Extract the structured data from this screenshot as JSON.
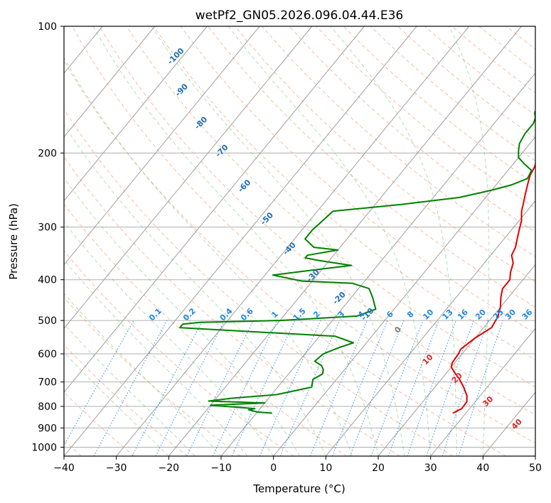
{
  "chart_data": {
    "type": "line",
    "title": "wetPf2_GN05.2026.096.04.44.E36",
    "xlabel": "Temperature (°C)",
    "ylabel": "Pressure (hPa)",
    "xlim": [
      -40,
      50
    ],
    "ylim": [
      1050,
      100
    ],
    "y_scale": "log",
    "x_ticks": [
      -40,
      -30,
      -20,
      -10,
      0,
      10,
      20,
      30,
      40,
      50
    ],
    "y_ticks": [
      100,
      200,
      300,
      400,
      500,
      600,
      700,
      800,
      900,
      1000
    ],
    "grid": true,
    "series": [
      {
        "name": "",
        "role": "temperature",
        "color": "#e00000",
        "points": [
          [
            27.5,
            830
          ],
          [
            28.5,
            810
          ],
          [
            28.4,
            780
          ],
          [
            27.5,
            755
          ],
          [
            25.5,
            720
          ],
          [
            23.5,
            690
          ],
          [
            21.5,
            665
          ],
          [
            20.0,
            645
          ],
          [
            19.5,
            630
          ],
          [
            19.3,
            600
          ],
          [
            19.0,
            585
          ],
          [
            20.0,
            550
          ],
          [
            21.5,
            520
          ],
          [
            21.0,
            490
          ],
          [
            20.0,
            465
          ],
          [
            18.5,
            440
          ],
          [
            17.5,
            420
          ],
          [
            17.5,
            400
          ],
          [
            16.5,
            385
          ],
          [
            15.5,
            365
          ],
          [
            14.0,
            350
          ],
          [
            13.5,
            335
          ],
          [
            12.5,
            320
          ],
          [
            11.5,
            305
          ],
          [
            10.5,
            290
          ],
          [
            9.0,
            275
          ],
          [
            8.0,
            262
          ],
          [
            7.0,
            250
          ],
          [
            6.0,
            238
          ],
          [
            5.0,
            226
          ],
          [
            4.5,
            215
          ],
          [
            3.5,
            205
          ],
          [
            2.5,
            195
          ],
          [
            2.0,
            185
          ],
          [
            1.5,
            175
          ],
          [
            1.0,
            165
          ],
          [
            0.5,
            155
          ],
          [
            1.0,
            145
          ],
          [
            2.0,
            135
          ],
          [
            1.8,
            125
          ],
          [
            1.0,
            118
          ],
          [
            0.8,
            110
          ],
          [
            1.5,
            100
          ]
        ]
      },
      {
        "name": "",
        "role": "dewpoint",
        "color": "#008000",
        "points": [
          [
            -7.0,
            830
          ],
          [
            -10.0,
            825
          ],
          [
            -12.0,
            815
          ],
          [
            -11.0,
            810
          ],
          [
            -15.0,
            803
          ],
          [
            -20.0,
            795
          ],
          [
            -15.0,
            790
          ],
          [
            -10.0,
            785
          ],
          [
            -21.0,
            777
          ],
          [
            -17.0,
            765
          ],
          [
            -9.0,
            750
          ],
          [
            -3.5,
            720
          ],
          [
            -4.5,
            690
          ],
          [
            -3.5,
            670
          ],
          [
            -4.0,
            655
          ],
          [
            -5.0,
            640
          ],
          [
            -7.0,
            625
          ],
          [
            -6.5,
            600
          ],
          [
            -4.5,
            580
          ],
          [
            -2.5,
            565
          ],
          [
            -7.0,
            545
          ],
          [
            -38.0,
            520
          ],
          [
            -38.0,
            510
          ],
          [
            -35.0,
            505
          ],
          [
            -20.0,
            500
          ],
          [
            -6.0,
            488
          ],
          [
            -3.5,
            470
          ],
          [
            -6.0,
            440
          ],
          [
            -8.0,
            420
          ],
          [
            -12.0,
            408
          ],
          [
            -22.0,
            403
          ],
          [
            -28.5,
            390
          ],
          [
            -22.0,
            380
          ],
          [
            -15.0,
            370
          ],
          [
            -22.0,
            360
          ],
          [
            -25.0,
            355
          ],
          [
            -25.0,
            350
          ],
          [
            -20.0,
            340
          ],
          [
            -25.0,
            335
          ],
          [
            -28.0,
            320
          ],
          [
            -28.0,
            305
          ],
          [
            -27.5,
            290
          ],
          [
            -27.0,
            275
          ],
          [
            -15.0,
            265
          ],
          [
            -5.0,
            255
          ],
          [
            0.0,
            245
          ],
          [
            3.0,
            238
          ],
          [
            5.0,
            230
          ],
          [
            4.5,
            220
          ],
          [
            2.0,
            212
          ],
          [
            0.0,
            205
          ],
          [
            -1.0,
            198
          ],
          [
            -2.0,
            190
          ],
          [
            -2.5,
            180
          ],
          [
            -2.5,
            170
          ],
          [
            -3.0,
            165
          ],
          [
            -4.0,
            160
          ],
          [
            -4.0,
            155
          ],
          [
            -3.5,
            150
          ],
          [
            -3.5,
            145
          ],
          [
            -3.0,
            140
          ],
          [
            -3.0,
            135
          ],
          [
            -2.5,
            130
          ],
          [
            -2.0,
            124
          ],
          [
            -1.0,
            118
          ],
          [
            0.0,
            113
          ],
          [
            -0.5,
            108
          ],
          [
            -1.0,
            104
          ],
          [
            -1.5,
            100
          ]
        ]
      }
    ],
    "isotherm_color": "#a0a0a0",
    "dry_adiabat_color": "#f4a582",
    "moist_adiabat_color": "#2ca02c",
    "mixing_ratio_color": "#1e88e5",
    "theta_label_color": "#1f6fb4",
    "warm_label_color": "#d62728",
    "zero_label_color": "#808080",
    "theta_labels": [
      {
        "text": "-100",
        "x": -18.6,
        "p": 118
      },
      {
        "text": "-90",
        "x": -17.5,
        "p": 142
      },
      {
        "text": "-80",
        "x": -13.8,
        "p": 170
      },
      {
        "text": "-70",
        "x": -9.8,
        "p": 198
      },
      {
        "text": "-60",
        "x": -5.5,
        "p": 240
      },
      {
        "text": "-50",
        "x": -1.2,
        "p": 287
      },
      {
        "text": "-40",
        "x": 3.1,
        "p": 338
      },
      {
        "text": "-30",
        "x": 7.6,
        "p": 392
      },
      {
        "text": "-20",
        "x": 12.6,
        "p": 443
      },
      {
        "text": "-10",
        "x": 18.0,
        "p": 484
      }
    ],
    "warm_labels": [
      {
        "text": "0",
        "x": 23.8,
        "p": 527
      },
      {
        "text": "10",
        "x": 29.5,
        "p": 620
      },
      {
        "text": "20",
        "x": 35.1,
        "p": 686
      },
      {
        "text": "30",
        "x": 41.0,
        "p": 780
      },
      {
        "text": "40",
        "x": 46.5,
        "p": 883
      }
    ],
    "mixing_ratio_labels": [
      {
        "text": "0.1",
        "x": -22.5
      },
      {
        "text": "0.2",
        "x": -16.0
      },
      {
        "text": "0.4",
        "x": -9.0
      },
      {
        "text": "0.6",
        "x": -5.0
      },
      {
        "text": "1",
        "x": 0.3
      },
      {
        "text": "1.5",
        "x": 5.0
      },
      {
        "text": "2",
        "x": 8.3
      },
      {
        "text": "3",
        "x": 13.0
      },
      {
        "text": "4",
        "x": 16.8
      },
      {
        "text": "6",
        "x": 22.3
      },
      {
        "text": "8",
        "x": 26.2
      },
      {
        "text": "10",
        "x": 29.6
      },
      {
        "text": "13",
        "x": 33.3
      },
      {
        "text": "16",
        "x": 36.2
      },
      {
        "text": "20",
        "x": 39.6
      },
      {
        "text": "25",
        "x": 43.0
      },
      {
        "text": "30",
        "x": 45.3
      },
      {
        "text": "36",
        "x": 48.5
      }
    ],
    "mixing_ratio_label_pressure": 500
  }
}
